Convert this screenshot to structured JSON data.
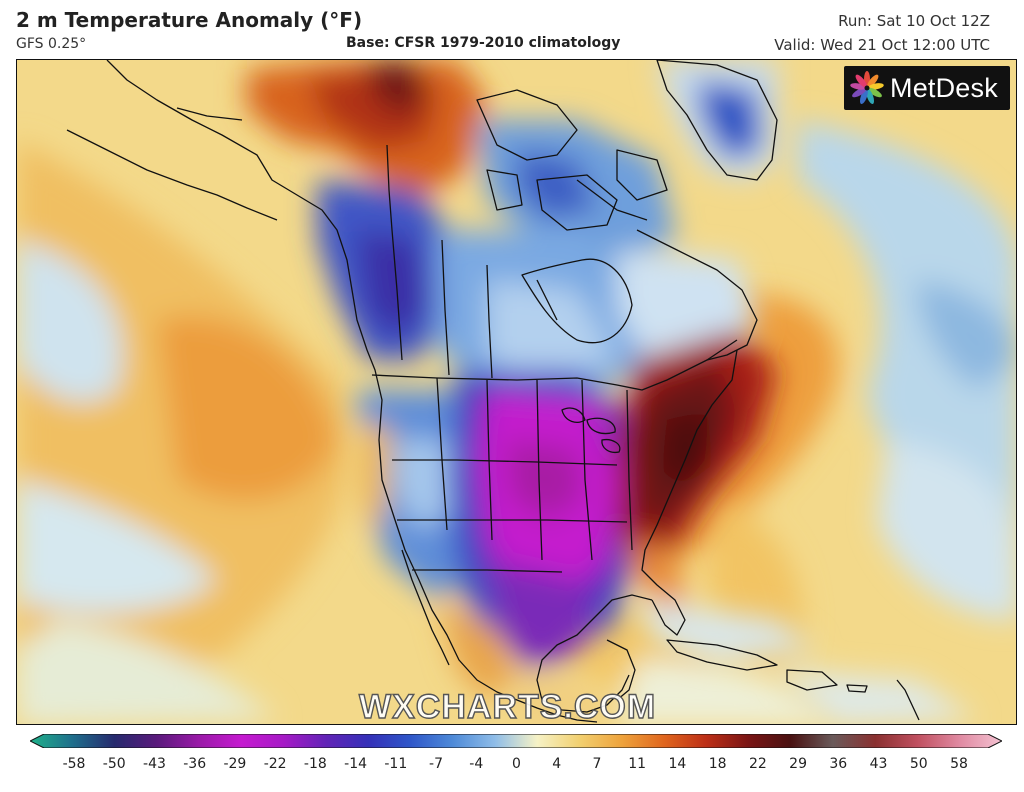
{
  "header": {
    "title": "2 m Temperature Anomaly (°F)",
    "model": "GFS 0.25°",
    "base": "Base: CFSR 1979-2010 climatology",
    "run": "Run: Sat 10 Oct 12Z",
    "valid": "Valid: Wed 21 Oct 12:00 UTC"
  },
  "logo": {
    "text": "MetDesk",
    "icon": "metdesk-flower-icon"
  },
  "watermark": "WXCHARTS.COM",
  "legend": {
    "ticks": [
      "-58",
      "-50",
      "-43",
      "-36",
      "-29",
      "-22",
      "-18",
      "-14",
      "-11",
      "-7",
      "-4",
      "0",
      "4",
      "7",
      "11",
      "14",
      "18",
      "22",
      "29",
      "36",
      "43",
      "50",
      "58"
    ],
    "colors": [
      "#1fb28a",
      "#1f6f8c",
      "#262a6e",
      "#5a1a7c",
      "#9a1aa8",
      "#c51ad0",
      "#a61ac6",
      "#6224b7",
      "#3530b8",
      "#2f57c9",
      "#4e8ad8",
      "#8fbde8",
      "#f6f2c6",
      "#f2d070",
      "#eea33c",
      "#e0661e",
      "#bd2f17",
      "#7a1515",
      "#4a1212",
      "#6a5a5a",
      "#8a3030",
      "#c05060",
      "#e08aa2",
      "#f4c2d2"
    ]
  },
  "colors": {
    "neutral_fill": "#f3d98a",
    "ocean_warm": "#f1c463",
    "cold_blue": "#3b6fd0",
    "very_cold_magenta": "#c81ad0",
    "warm_red": "#8a1a12",
    "coastline": "#111111"
  }
}
